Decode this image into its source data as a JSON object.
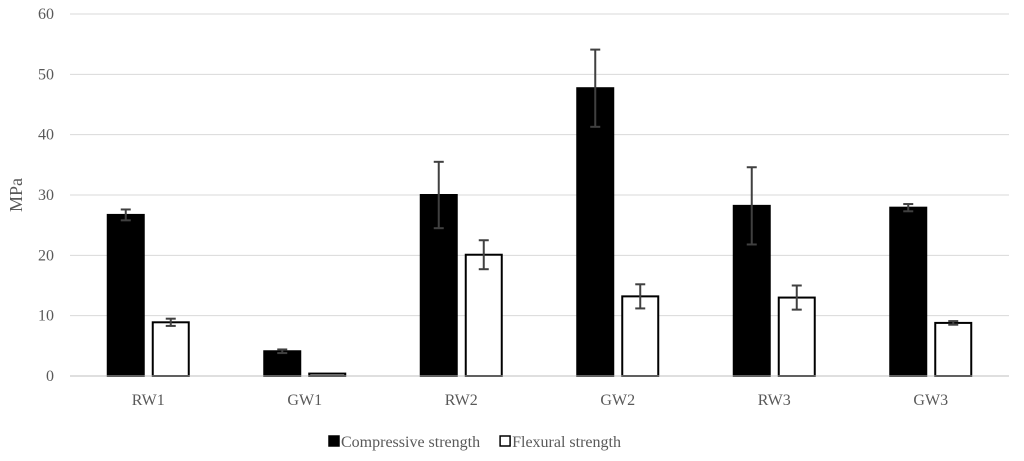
{
  "chart_data": {
    "type": "bar",
    "title": "",
    "xlabel": "",
    "ylabel": "MPa",
    "ylim": [
      0,
      60
    ],
    "yticks": [
      0,
      10,
      20,
      30,
      40,
      50,
      60
    ],
    "grid": true,
    "legend_position": "bottom",
    "categories": [
      "RW1",
      "GW1",
      "RW2",
      "GW2",
      "RW3",
      "GW3"
    ],
    "series": [
      {
        "name": "Compressive strength",
        "color": "#000000",
        "values": [
          26.7,
          4.1,
          30.0,
          47.7,
          28.2,
          27.9
        ],
        "error": [
          0.9,
          0.3,
          5.5,
          6.4,
          6.4,
          0.6
        ]
      },
      {
        "name": "Flexural strength",
        "color": "#ffffff",
        "values": [
          8.9,
          0.4,
          20.1,
          13.2,
          13.0,
          8.8
        ],
        "error": [
          0.6,
          0.0,
          2.4,
          2.0,
          2.0,
          0.3
        ]
      }
    ]
  }
}
